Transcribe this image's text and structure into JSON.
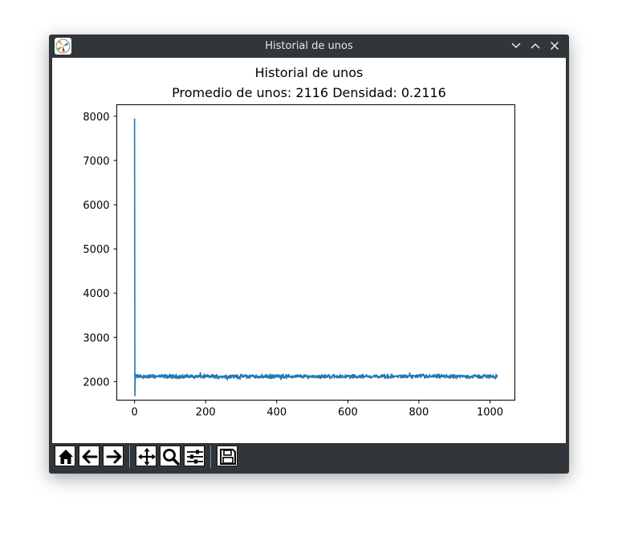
{
  "window": {
    "title": "Historial de unos",
    "app_icon": "matplotlib-icon",
    "controls": [
      "minimize-icon",
      "maximize-icon",
      "close-icon"
    ]
  },
  "toolbar": {
    "buttons": [
      {
        "name": "home-button",
        "icon": "home-icon"
      },
      {
        "name": "back-button",
        "icon": "arrow-left-icon"
      },
      {
        "name": "forward-button",
        "icon": "arrow-right-icon"
      },
      {
        "name": "pan-button",
        "icon": "move-icon"
      },
      {
        "name": "zoom-button",
        "icon": "magnifier-icon"
      },
      {
        "name": "configure-subplots-button",
        "icon": "sliders-icon"
      },
      {
        "name": "save-button",
        "icon": "floppy-disk-icon"
      }
    ]
  },
  "chart_data": {
    "type": "line",
    "title": "Historial de unos",
    "subtitle": "Promedio de unos: 2116 Densidad: 0.2116",
    "xlabel": "",
    "ylabel": "",
    "xlim": [
      -50,
      1070
    ],
    "ylim": [
      1580,
      8260
    ],
    "xticks": [
      0,
      200,
      400,
      600,
      800,
      1000
    ],
    "yticks": [
      2000,
      3000,
      4000,
      5000,
      6000,
      7000,
      8000
    ],
    "grid": false,
    "line_color": "#1f77b4",
    "series": [
      {
        "x_start": 0,
        "x_end": 1020,
        "initial_values": [
          7950,
          1680,
          2130
        ],
        "steady_mean": 2116,
        "noise_range": [
          2020,
          2230
        ],
        "points": [
          [
            0,
            7950
          ],
          [
            1,
            1680
          ],
          [
            2,
            2130
          ],
          [
            5,
            2160
          ],
          [
            10,
            2090
          ],
          [
            20,
            2150
          ],
          [
            40,
            2110
          ],
          [
            60,
            2140
          ],
          [
            100,
            2100
          ],
          [
            150,
            2130
          ],
          [
            200,
            2120
          ],
          [
            250,
            2090
          ],
          [
            300,
            2140
          ],
          [
            350,
            2130
          ],
          [
            400,
            2110
          ],
          [
            450,
            2100
          ],
          [
            500,
            2130
          ],
          [
            550,
            2120
          ],
          [
            600,
            2110
          ],
          [
            650,
            2140
          ],
          [
            700,
            2110
          ],
          [
            750,
            2130
          ],
          [
            800,
            2090
          ],
          [
            850,
            2120
          ],
          [
            900,
            2140
          ],
          [
            950,
            2110
          ],
          [
            1000,
            2120
          ],
          [
            1020,
            2110
          ]
        ]
      }
    ]
  }
}
